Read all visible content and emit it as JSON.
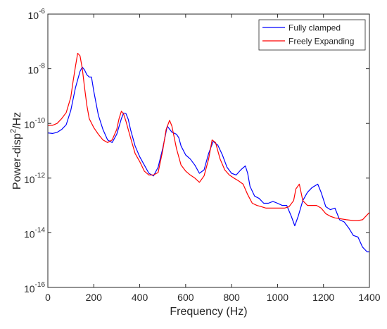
{
  "chart_data": {
    "type": "line",
    "title": "",
    "xlabel": "Frequency (Hz)",
    "ylabel_base": "Power-disp",
    "ylabel_sup": "2",
    "ylabel_tail": "/Hz",
    "xlim": [
      0,
      1400
    ],
    "ylim": [
      1e-16,
      1e-06
    ],
    "yscale": "log",
    "grid": false,
    "legend_position": "top-right",
    "x_ticks": [
      0,
      200,
      400,
      600,
      800,
      1000,
      1200,
      1400
    ],
    "x_tick_labels": [
      "0",
      "200",
      "400",
      "600",
      "800",
      "1000",
      "1200",
      "1400"
    ],
    "y_ticks": [
      -16,
      -14,
      -12,
      -10,
      -8,
      -6
    ],
    "y_tick_base": "10",
    "y_tick_exponents": [
      "-16",
      "-14",
      "-12",
      "-10",
      "-8",
      "-6"
    ],
    "series": [
      {
        "name": "Fully clamped",
        "color": "#0000ff",
        "x": [
          0,
          20,
          40,
          60,
          80,
          100,
          120,
          140,
          150,
          160,
          170,
          180,
          190,
          200,
          220,
          240,
          260,
          280,
          300,
          320,
          330,
          340,
          350,
          360,
          380,
          400,
          420,
          440,
          460,
          480,
          500,
          520,
          540,
          560,
          570,
          580,
          600,
          620,
          640,
          660,
          680,
          700,
          720,
          740,
          760,
          780,
          800,
          820,
          840,
          860,
          870,
          880,
          900,
          920,
          940,
          960,
          980,
          1000,
          1020,
          1040,
          1060,
          1075,
          1090,
          1110,
          1130,
          1150,
          1175,
          1190,
          1210,
          1230,
          1250,
          1270,
          1290,
          1310,
          1330,
          1350,
          1370,
          1390,
          1400
        ],
        "y": [
          4.5e-11,
          4.3e-11,
          4.7e-11,
          6e-11,
          9e-11,
          3e-10,
          2e-09,
          8e-09,
          1.15e-08,
          9e-09,
          6e-09,
          5e-09,
          5e-09,
          1.5e-09,
          2e-10,
          6e-11,
          2.5e-11,
          2e-11,
          4e-11,
          1.5e-10,
          2.4e-10,
          2.3e-10,
          1.4e-10,
          6e-11,
          1.5e-11,
          6e-12,
          3e-12,
          1.5e-12,
          1.2e-12,
          2.5e-12,
          1.2e-11,
          8e-11,
          4.8e-11,
          4e-11,
          3e-11,
          1.5e-11,
          7e-12,
          5e-12,
          3e-12,
          1.5e-12,
          2e-12,
          8e-12,
          2.2e-11,
          1.6e-11,
          7e-12,
          2.5e-12,
          1.5e-12,
          1.3e-12,
          2e-12,
          2.8e-12,
          1.5e-12,
          5e-13,
          2.2e-13,
          1.8e-13,
          1.2e-13,
          1.2e-13,
          1.4e-13,
          1.2e-13,
          1e-13,
          1e-13,
          4e-14,
          1.8e-14,
          4e-14,
          1.5e-13,
          3e-13,
          4.5e-13,
          6e-13,
          3e-13,
          9e-14,
          7e-14,
          8e-14,
          3e-14,
          2.5e-14,
          1.5e-14,
          8e-15,
          7e-15,
          3e-15,
          2e-15,
          2e-15
        ]
      },
      {
        "name": "Freely Expanding",
        "color": "#ff0000",
        "x": [
          0,
          20,
          40,
          60,
          80,
          100,
          110,
          120,
          130,
          140,
          150,
          160,
          170,
          180,
          200,
          220,
          240,
          260,
          280,
          300,
          310,
          320,
          330,
          340,
          360,
          380,
          400,
          420,
          440,
          460,
          480,
          500,
          515,
          530,
          540,
          560,
          580,
          600,
          620,
          640,
          660,
          680,
          700,
          715,
          730,
          750,
          770,
          790,
          810,
          830,
          850,
          870,
          890,
          910,
          930,
          950,
          970,
          990,
          1010,
          1030,
          1050,
          1070,
          1080,
          1095,
          1110,
          1130,
          1150,
          1170,
          1190,
          1210,
          1230,
          1250,
          1270,
          1300,
          1330,
          1350,
          1370,
          1390,
          1400
        ],
        "y": [
          8.5e-11,
          8.5e-11,
          1e-10,
          1.5e-10,
          2.5e-10,
          9e-10,
          3.5e-09,
          1.2e-08,
          3.7e-08,
          3e-08,
          1e-08,
          2e-09,
          4.5e-10,
          1.5e-10,
          7e-11,
          4e-11,
          2.5e-11,
          2e-11,
          2.5e-11,
          6e-11,
          1.5e-10,
          2.8e-10,
          2.2e-10,
          1.2e-10,
          3e-11,
          8e-12,
          4e-12,
          1.8e-12,
          1.3e-12,
          1.3e-12,
          1.6e-12,
          1e-11,
          6e-11,
          1.3e-10,
          8e-11,
          1.2e-11,
          3e-12,
          1.8e-12,
          1.3e-12,
          1e-12,
          7e-13,
          1.2e-12,
          5e-12,
          2.5e-11,
          2e-11,
          5e-12,
          2e-12,
          1.3e-12,
          1e-12,
          8e-13,
          6e-13,
          2.5e-13,
          1.2e-13,
          1e-13,
          9e-14,
          8e-14,
          8e-14,
          8e-14,
          8e-14,
          8e-14,
          9e-14,
          1.5e-13,
          4e-13,
          6e-13,
          1.5e-13,
          1e-13,
          1e-13,
          1e-13,
          8e-14,
          5e-14,
          4e-14,
          3.5e-14,
          3.3e-14,
          3e-14,
          2.8e-14,
          2.8e-14,
          3e-14,
          4.5e-14,
          5.5e-14
        ]
      }
    ]
  }
}
